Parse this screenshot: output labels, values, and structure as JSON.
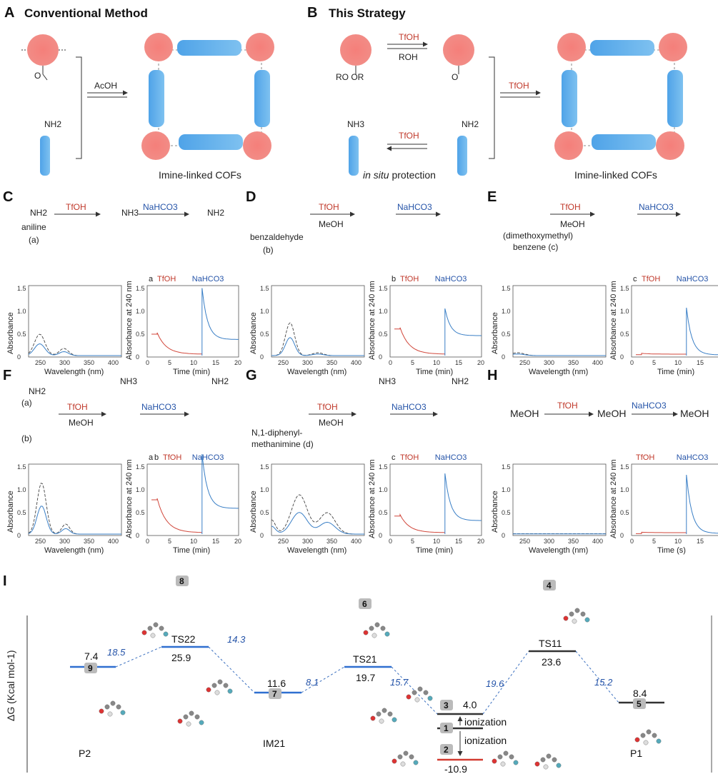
{
  "panels": {
    "A": {
      "letter": "A",
      "title": "Conventional Method",
      "acid": "AcOH",
      "amine": "NH2",
      "caption": "Imine-linked COFs"
    },
    "B": {
      "letter": "B",
      "title": "This Strategy",
      "acid1": "TfOH",
      "alcohol": "ROH",
      "acetal": "RO OR",
      "acid2": "TfOH",
      "ammonium": "NH3",
      "acid3": "TfOH",
      "amine": "NH2",
      "caption_italic": "in situ",
      "caption_rest": " protection",
      "caption": "Imine-linked COFs"
    },
    "C": {
      "letter": "C",
      "reagent1": "TfOH",
      "reagent2": "NaHCO3",
      "species": "NH2",
      "ammonium": "NH3",
      "name": "aniline",
      "tag": "(a)"
    },
    "D": {
      "letter": "D",
      "reagent1": "TfOH",
      "solvent": "MeOH",
      "reagent2": "NaHCO3",
      "name": "benzaldehyde",
      "tag": "(b)"
    },
    "E": {
      "letter": "E",
      "reagent1": "TfOH",
      "solvent": "MeOH",
      "reagent2": "NaHCO3",
      "name": "(dimethoxymethyl)",
      "name2": "benzene (c)"
    },
    "F": {
      "letter": "F",
      "reagent1": "TfOH",
      "solvent": "MeOH",
      "reagent2": "NaHCO3",
      "tag_a": "(a)",
      "tag_b": "(b)",
      "amine": "NH2",
      "ammonium": "NH3"
    },
    "G": {
      "letter": "G",
      "reagent1": "TfOH",
      "solvent": "MeOH",
      "reagent2": "NaHCO3",
      "name": "N,1-diphenyl-",
      "name2": "methanimine (d)",
      "ammonium": "NH3",
      "amine": "NH2"
    },
    "H": {
      "letter": "H",
      "left": "MeOH",
      "reagent1": "TfOH",
      "middle": "MeOH",
      "reagent2": "NaHCO3",
      "right": "MeOH"
    },
    "I": {
      "letter": "I",
      "yaxis": "ΔG (Kcal mol-1)"
    }
  },
  "spectra_axes": {
    "absorbance_label": "Absorbance",
    "wavelength_label": "Wavelength (nm)",
    "kinetic_label": "Absorbance at 240 nm",
    "time_label": "Time (min)",
    "time_label_H": "Time (s)",
    "wl_ticks": [
      "250",
      "300",
      "350",
      "400"
    ],
    "time_ticks": [
      "0",
      "5",
      "10",
      "15",
      "20"
    ],
    "abs_ticks": [
      "0",
      "0.5",
      "1.0",
      "1.5"
    ],
    "markers": {
      "C": [
        "a",
        "TfOH",
        "NaHCO3"
      ],
      "D": [
        "b",
        "TfOH",
        "NaHCO3"
      ],
      "E": [
        "c",
        "TfOH",
        "NaHCO3"
      ],
      "F": [
        "a",
        "b",
        "TfOH",
        "NaHCO3"
      ],
      "G": [
        "c",
        "TfOH",
        "NaHCO3"
      ],
      "H": [
        "TfOH",
        "NaHCO3"
      ]
    }
  },
  "energy_diagram": {
    "states": [
      {
        "label": "P2",
        "badge": "9",
        "energy": "7.4"
      },
      {
        "label": "TS22",
        "badge": "8",
        "energy": "25.9"
      },
      {
        "label": "IM21",
        "badge": "7",
        "energy": "11.6"
      },
      {
        "label": "TS21",
        "badge": "6",
        "energy": "19.7"
      },
      {
        "label": "",
        "badge": "3",
        "energy": "4.0"
      },
      {
        "label": "",
        "badge": "1",
        "energy": ""
      },
      {
        "label": "",
        "badge": "2",
        "energy": "-10.9"
      },
      {
        "label": "TS11",
        "badge": "4",
        "energy": "23.6"
      },
      {
        "label": "P1",
        "badge": "5",
        "energy": "8.4"
      }
    ],
    "barriers": [
      "18.5",
      "14.3",
      "8.1",
      "15.7",
      "19.6",
      "15.2"
    ],
    "ionization": "ionization"
  }
}
